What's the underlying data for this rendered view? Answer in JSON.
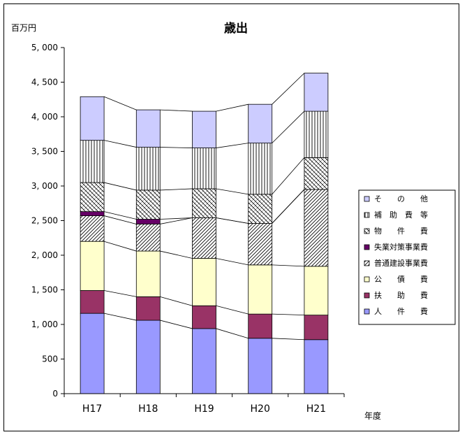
{
  "chart_data": {
    "type": "bar",
    "stacked": true,
    "title": "歳出",
    "ylabel": "百万円",
    "xlabel": "年度",
    "categories": [
      "H17",
      "H18",
      "H19",
      "H20",
      "H21"
    ],
    "ylim": [
      0,
      5000
    ],
    "yticks": [
      0,
      500,
      1000,
      1500,
      2000,
      2500,
      3000,
      3500,
      4000,
      4500,
      5000
    ],
    "ytick_labels": [
      "0",
      "500",
      "1, 000",
      "1, 500",
      "2, 000",
      "2, 500",
      "3, 000",
      "3, 500",
      "4, 000",
      "4, 500",
      "5, 000"
    ],
    "grid": false,
    "legend_position": "right",
    "series": [
      {
        "name": "人　　件　　費",
        "values": [
          1160,
          1060,
          940,
          800,
          780
        ],
        "color": "#9999ff",
        "pattern": "solid"
      },
      {
        "name": "扶　　助　　費",
        "values": [
          330,
          340,
          330,
          350,
          355
        ],
        "color": "#993366",
        "pattern": "solid"
      },
      {
        "name": "公　　債　　費",
        "values": [
          710,
          660,
          685,
          710,
          705
        ],
        "color": "#ffffcc",
        "pattern": "solid"
      },
      {
        "name": "普通建設事業費",
        "values": [
          370,
          390,
          585,
          600,
          1110
        ],
        "color": "#ffffff",
        "pattern": "diag-fwd"
      },
      {
        "name": "失業対策事業費",
        "values": [
          60,
          70,
          0,
          0,
          0
        ],
        "color": "#660066",
        "pattern": "solid"
      },
      {
        "name": "物　　件　　費",
        "values": [
          420,
          420,
          420,
          420,
          460
        ],
        "color": "#ffffff",
        "pattern": "diag-cross"
      },
      {
        "name": "補　助　費　等",
        "values": [
          610,
          620,
          590,
          740,
          670
        ],
        "color": "#ffffff",
        "pattern": "vertical"
      },
      {
        "name": "そ　　の　　他",
        "values": [
          630,
          540,
          530,
          560,
          550
        ],
        "color": "#ccccff",
        "pattern": "solid"
      }
    ]
  }
}
